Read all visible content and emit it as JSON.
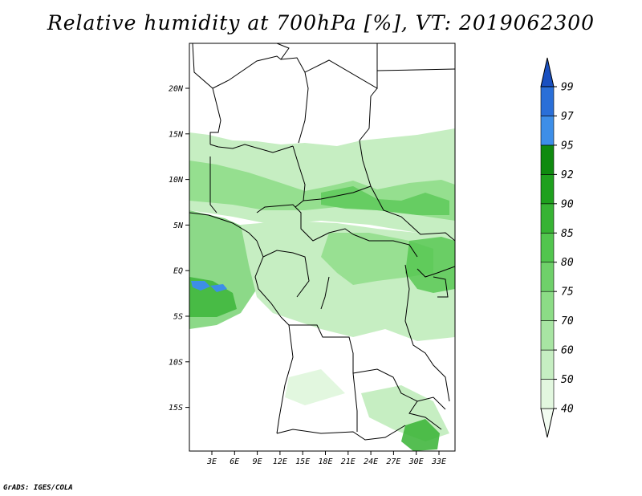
{
  "title": "Relative humidity at 700hPa [%], VT: 2019062300",
  "footer": "GrADS: IGES/COLA",
  "map": {
    "lat_ticks": [
      "20N",
      "15N",
      "10N",
      "5N",
      "EQ",
      "5S",
      "10S",
      "15S"
    ],
    "lon_ticks": [
      "3E",
      "6E",
      "9E",
      "12E",
      "15E",
      "18E",
      "21E",
      "24E",
      "27E",
      "30E",
      "33E"
    ]
  },
  "colorbar": {
    "levels": [
      "40",
      "50",
      "60",
      "70",
      "75",
      "80",
      "85",
      "90",
      "92",
      "95",
      "97",
      "99"
    ],
    "colors": [
      "#f2fcf1",
      "#e2f7df",
      "#c6eec2",
      "#a8e5a3",
      "#8cdc86",
      "#6fd06a",
      "#52c54e",
      "#37b334",
      "#1fa01e",
      "#0f8a0f",
      "#3d8ee8",
      "#2a6fd8",
      "#1a50c0"
    ]
  }
}
